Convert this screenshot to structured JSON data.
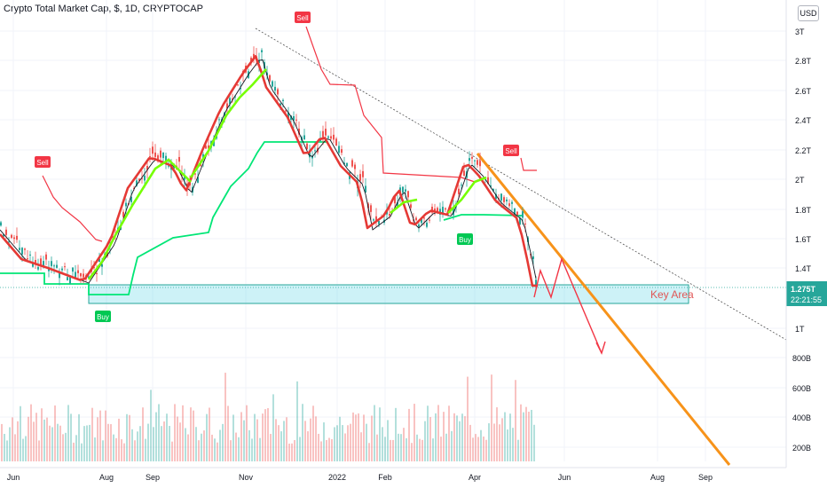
{
  "header": {
    "symbol_line": "Crypto Total Market Cap, $, 1D, CRYPTOCAP"
  },
  "currency_button": "USD",
  "chart_data": {
    "type": "candlestick",
    "title": "Crypto Total Market Cap, $, 1D, CRYPTOCAP",
    "x_axis": {
      "ticks": [
        "Jun",
        "Aug",
        "Sep",
        "Nov",
        "2022",
        "Feb",
        "Apr",
        "Jun",
        "Aug",
        "Sep"
      ]
    },
    "y_axis_price": {
      "scale": "log",
      "unit": "USD",
      "ticks": [
        "3T",
        "2.8T",
        "2.6T",
        "2.4T",
        "2.2T",
        "2T",
        "1.8T",
        "1.6T",
        "1.4T",
        "1T"
      ]
    },
    "y_axis_volume": {
      "ticks": [
        "800B",
        "600B",
        "400B",
        "200B"
      ]
    },
    "current_price": {
      "value": "1.275T",
      "countdown": "22:21:55"
    },
    "key_area": {
      "label": "Key Area",
      "range_approx": [
        "1.2T",
        "1.3T"
      ]
    },
    "signals": [
      {
        "type": "Sell",
        "when": "Jun 2021"
      },
      {
        "type": "Buy",
        "when": "Jul 2021"
      },
      {
        "type": "Sell",
        "when": "Nov 2021"
      },
      {
        "type": "Buy",
        "when": "Mar 2022"
      },
      {
        "type": "Sell",
        "when": "Apr 2022"
      }
    ],
    "colors": {
      "up": "#26a69a",
      "down": "#ef5350",
      "resistance_trend": "#f7931a",
      "stop_up": "#00e676",
      "stop_down": "#f23645",
      "projection": "#f23645"
    }
  }
}
